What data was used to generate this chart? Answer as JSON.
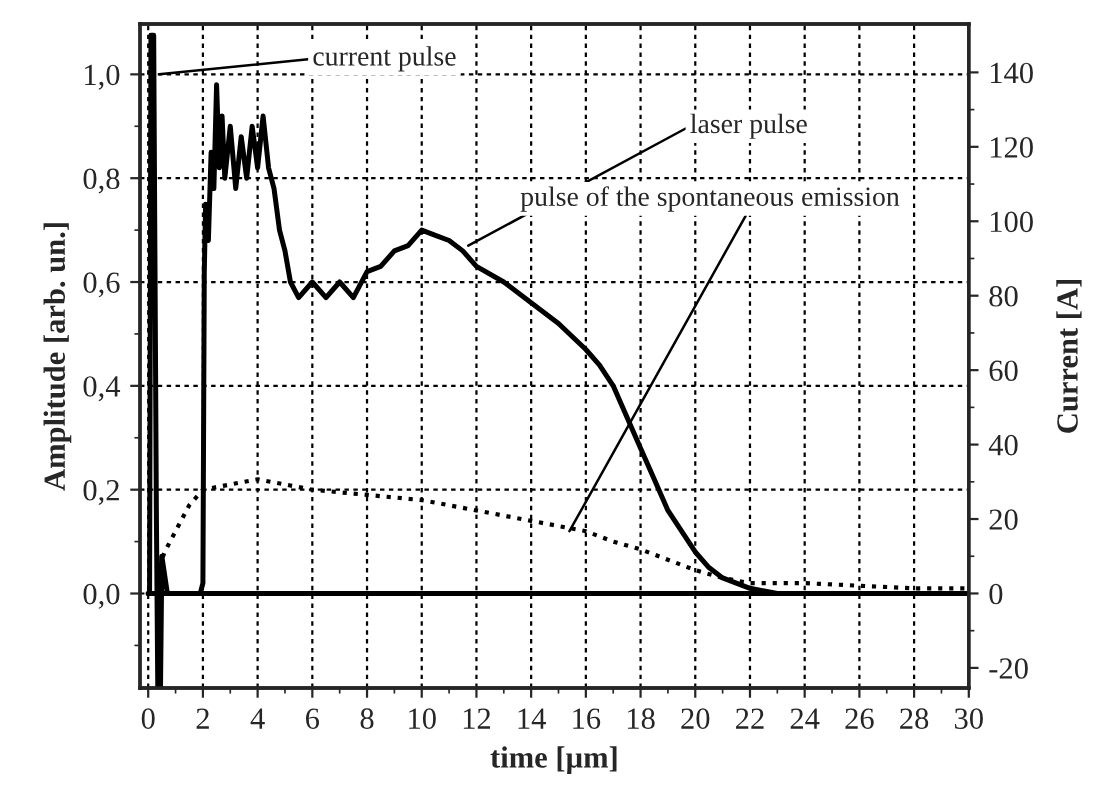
{
  "chart_data": {
    "type": "line",
    "xlabel": "time [µm]",
    "ylabel": "Amplitude [arb. un.]",
    "y2label": "Current [A]",
    "xlim": [
      -0.3,
      30
    ],
    "ylim": [
      -0.182,
      1.097
    ],
    "y2lim": [
      -25.4,
      153
    ],
    "xticks": [
      0,
      {
        "value": 1,
        "label": null
      },
      2,
      {
        "value": 3,
        "label": null
      },
      4,
      {
        "value": 5,
        "label": null
      },
      6,
      {
        "value": 7,
        "label": null
      },
      8,
      {
        "value": 9,
        "label": null
      },
      10,
      {
        "value": 11,
        "label": null
      },
      12,
      {
        "value": 13,
        "label": null
      },
      14,
      {
        "value": 15,
        "label": null
      },
      16,
      {
        "value": 17,
        "label": null
      },
      18,
      {
        "value": 19,
        "label": null
      },
      20,
      {
        "value": 21,
        "label": null
      },
      22,
      {
        "value": 23,
        "label": null
      },
      24,
      {
        "value": 25,
        "label": null
      },
      26,
      {
        "value": 27,
        "label": null
      },
      28,
      {
        "value": 29,
        "label": null
      },
      30
    ],
    "yticks": [
      {
        "value": -0.1,
        "label": null
      },
      {
        "value": 0,
        "label": "0,0"
      },
      {
        "value": 0.1,
        "label": null
      },
      {
        "value": 0.2,
        "label": "0,2"
      },
      {
        "value": 0.3,
        "label": null
      },
      {
        "value": 0.4,
        "label": "0,4"
      },
      {
        "value": 0.5,
        "label": null
      },
      {
        "value": 0.6,
        "label": "0,6"
      },
      {
        "value": 0.7,
        "label": null
      },
      {
        "value": 0.8,
        "label": "0,8"
      },
      {
        "value": 0.9,
        "label": null
      },
      {
        "value": 1.0,
        "label": "1,0"
      }
    ],
    "y2ticks": [
      -20,
      {
        "value": -10,
        "label": null
      },
      0,
      {
        "value": 10,
        "label": null
      },
      20,
      {
        "value": 30,
        "label": null
      },
      40,
      {
        "value": 50,
        "label": null
      },
      60,
      {
        "value": 70,
        "label": null
      },
      80,
      {
        "value": 90,
        "label": null
      },
      100,
      {
        "value": 110,
        "label": null
      },
      120,
      {
        "value": 130,
        "label": null
      },
      140
    ],
    "grid": true,
    "series": [
      {
        "color": "#000000",
        "line_style": "solid",
        "x": [
          0,
          1.9,
          2.0,
          2.05,
          2.1,
          2.2,
          2.3,
          2.4,
          2.5,
          2.6,
          2.7,
          2.8,
          3.0,
          3.2,
          3.4,
          3.6,
          3.8,
          4.0,
          4.2,
          4.4,
          4.6,
          4.8,
          5.0,
          5.2,
          5.5,
          6.0,
          6.5,
          7.0,
          7.5,
          8.0,
          8.5,
          9.0,
          9.5,
          10.0,
          10.5,
          11.0,
          11.5,
          12.0,
          13.0,
          14.0,
          15.0,
          16.0,
          16.5,
          17.0,
          17.5,
          18.0,
          18.5,
          19.0,
          19.5,
          20.0,
          20.5,
          21.0,
          21.5,
          22.0,
          23,
          24,
          26,
          28,
          30
        ],
        "values": [
          0,
          0,
          0.02,
          0.62,
          0.75,
          0.68,
          0.85,
          0.78,
          0.98,
          0.82,
          0.92,
          0.8,
          0.9,
          0.78,
          0.88,
          0.8,
          0.9,
          0.82,
          0.92,
          0.82,
          0.78,
          0.7,
          0.66,
          0.6,
          0.57,
          0.6,
          0.57,
          0.6,
          0.57,
          0.62,
          0.63,
          0.66,
          0.67,
          0.7,
          0.69,
          0.68,
          0.66,
          0.63,
          0.6,
          0.56,
          0.52,
          0.47,
          0.44,
          0.4,
          0.34,
          0.28,
          0.22,
          0.16,
          0.12,
          0.08,
          0.05,
          0.03,
          0.02,
          0.01,
          0,
          0,
          0,
          0,
          0
        ]
      },
      {
        "color": "#000000",
        "line_style": "dotted",
        "x": [
          0.4,
          0.6,
          1.0,
          1.5,
          2.0,
          3,
          4,
          5,
          6,
          8,
          10,
          12,
          14,
          15,
          16,
          17,
          18,
          19,
          20,
          21,
          22,
          24,
          26,
          28,
          30
        ],
        "values": [
          0.05,
          0.08,
          0.12,
          0.17,
          0.2,
          0.21,
          0.22,
          0.21,
          0.2,
          0.19,
          0.18,
          0.16,
          0.14,
          0.13,
          0.12,
          0.1,
          0.085,
          0.065,
          0.045,
          0.03,
          0.02,
          0.02,
          0.015,
          0.01,
          0.01
        ]
      },
      {
        "color": "#000000",
        "line_style": "solid",
        "axis": "y2",
        "x": [
          0,
          0.05,
          0.1,
          0.2,
          0.3,
          0.35,
          0.45,
          0.5,
          0.7,
          30
        ],
        "values": [
          0,
          0,
          150,
          150,
          20,
          -25,
          -25,
          10,
          0,
          0
        ]
      }
    ],
    "annotations": [
      {
        "text": "current pulse",
        "x": 0.4,
        "y": 1.0
      },
      {
        "text": "laser pulse",
        "x": 11.7,
        "y": 0.67
      },
      {
        "text": "pulse of the spontaneous emission",
        "x": 15.4,
        "y": 0.12
      }
    ]
  }
}
